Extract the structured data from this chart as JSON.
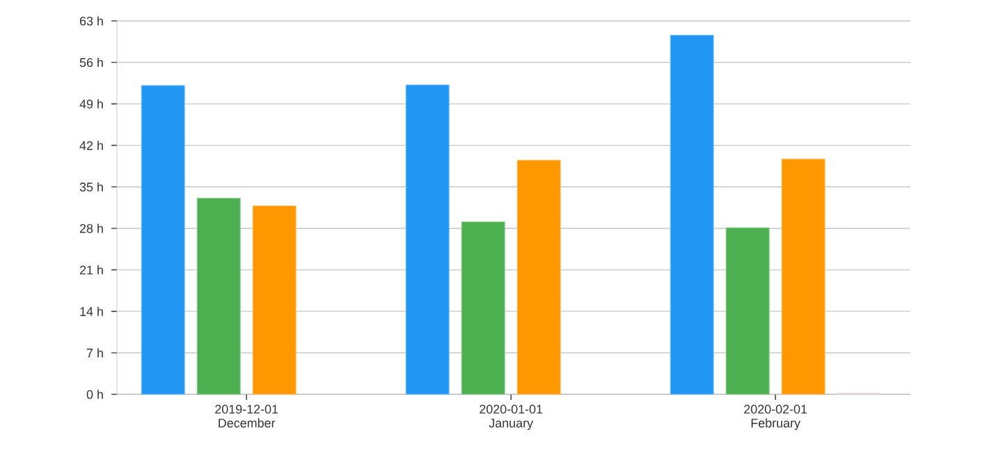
{
  "chart_data": {
    "type": "bar",
    "categories": [
      "2019-12-01 December",
      "2020-01-01 January",
      "2020-02-01 February"
    ],
    "series": [
      {
        "color": "#2196f3",
        "values": [
          52.1,
          52.2,
          60.6
        ]
      },
      {
        "color": "#4caf50",
        "values": [
          33.1,
          29.1,
          28.1
        ]
      },
      {
        "color": "#ff9800",
        "values": [
          31.8,
          39.5,
          39.7
        ]
      },
      {
        "color": "#d7ccc8",
        "values": [
          null,
          null,
          0.2
        ]
      }
    ],
    "ylim": [
      0,
      63
    ],
    "yticks": [
      {
        "value": 0,
        "label": "0 h"
      },
      {
        "value": 7,
        "label": "7 h"
      },
      {
        "value": 14,
        "label": "14 h"
      },
      {
        "value": 21,
        "label": "21 h"
      },
      {
        "value": 28,
        "label": "28 h"
      },
      {
        "value": 35,
        "label": "35 h"
      },
      {
        "value": 42,
        "label": "42 h"
      },
      {
        "value": 49,
        "label": "49 h"
      },
      {
        "value": 56,
        "label": "56 h"
      },
      {
        "value": 63,
        "label": "63 h"
      }
    ],
    "grid": "y"
  }
}
